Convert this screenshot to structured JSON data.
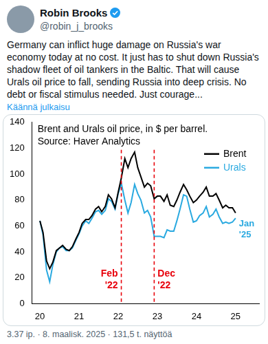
{
  "post": {
    "name": "Robin Brooks",
    "handle": "@robin_j_brooks",
    "text": "Germany can inflict huge damage on Russia's war economy today at no cost. It just has to shut down Russia's shadow fleet of oil tankers in the Baltic. That will cause Urals oil price to fall, sending Russia into deep crisis. No debt or fiscal stimulus needed. Just courage...",
    "translate": "Käännä julkaisu",
    "footer": "3.37 ip. · 8. maalisk. 2025 · 131,5 t. näyttöä"
  },
  "chart_data": {
    "type": "line",
    "title": "Brent and Urals oil price, in $ per barrel.",
    "subtitle": "Source: Haver Analytics",
    "x": [
      20,
      20.08,
      20.17,
      20.25,
      20.33,
      20.42,
      20.5,
      20.58,
      20.67,
      20.75,
      20.83,
      20.92,
      21,
      21.08,
      21.17,
      21.25,
      21.33,
      21.42,
      21.5,
      21.58,
      21.67,
      21.75,
      21.83,
      21.92,
      22,
      22.08,
      22.17,
      22.25,
      22.33,
      22.42,
      22.5,
      22.58,
      22.67,
      22.75,
      22.83,
      22.92,
      23,
      23.08,
      23.17,
      23.25,
      23.33,
      23.42,
      23.5,
      23.58,
      23.67,
      23.75,
      23.83,
      23.92,
      24,
      24.08,
      24.17,
      24.25,
      24.33,
      24.42,
      24.5,
      24.58,
      24.67,
      24.75,
      24.83,
      24.92,
      25
    ],
    "series": [
      {
        "name": "Brent",
        "color": "#000000",
        "values": [
          64,
          55,
          33,
          27,
          32,
          41,
          43,
          45,
          42,
          41,
          44,
          50,
          55,
          62,
          65,
          65,
          68,
          73,
          75,
          71,
          75,
          84,
          81,
          74,
          86,
          97,
          112,
          105,
          112,
          117,
          105,
          98,
          90,
          93,
          91,
          81,
          83,
          83,
          79,
          84,
          76,
          75,
          80,
          86,
          92,
          88,
          83,
          78,
          80,
          83,
          86,
          90,
          83,
          83,
          85,
          80,
          74,
          76,
          74,
          74,
          70
        ]
      },
      {
        "name": "Urals",
        "color": "#29a9e0",
        "values": [
          64,
          53,
          26,
          17,
          30,
          40,
          43,
          44,
          41,
          41,
          43,
          49,
          54,
          60,
          64,
          62,
          66,
          71,
          72,
          69,
          72,
          81,
          79,
          73,
          85,
          93,
          80,
          70,
          78,
          92,
          85,
          80,
          70,
          72,
          67,
          52,
          52,
          52,
          51,
          57,
          56,
          56,
          64,
          73,
          84,
          83,
          73,
          63,
          64,
          68,
          70,
          75,
          67,
          69,
          73,
          67,
          62,
          63,
          62,
          63,
          66
        ]
      }
    ],
    "xlim": [
      19.8,
      25.6
    ],
    "xticks": [
      20,
      21,
      22,
      23,
      24,
      25
    ],
    "ylim": [
      0,
      140
    ],
    "yticks": [
      0,
      20,
      40,
      60,
      80,
      100,
      120,
      140
    ],
    "grid": false,
    "legend": "top right",
    "annotations": [
      {
        "text": "Feb '22",
        "x": 22.08,
        "color": "#e8000b",
        "line_style": "dashed"
      },
      {
        "text": "Dec '22",
        "x": 22.92,
        "color": "#e8000b",
        "line_style": "dashed"
      },
      {
        "text": "Jan '25",
        "series": "Urals"
      }
    ]
  }
}
